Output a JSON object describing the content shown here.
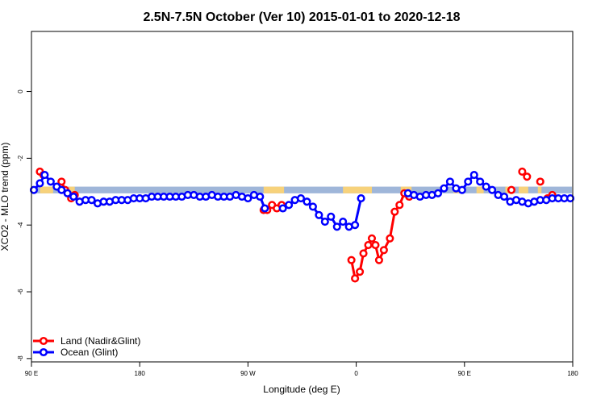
{
  "chart_data": {
    "type": "line",
    "title": "2.5N-7.5N October (Ver 10)   2015-01-01 to 2020-12-18",
    "xlabel": "Longitude (deg E)",
    "ylabel": "XCO2 - MLO trend (ppm)",
    "x_ticks": [
      {
        "value": 90,
        "label": "90 E"
      },
      {
        "value": 180,
        "label": "180"
      },
      {
        "value": 270,
        "label": "90 W"
      },
      {
        "value": 360,
        "label": "0"
      },
      {
        "value": 450,
        "label": "90 E"
      },
      {
        "value": 540,
        "label": "180"
      }
    ],
    "y_ticks": [
      {
        "value": 0,
        "label": "0"
      },
      {
        "value": -2,
        "label": "-2"
      },
      {
        "value": -4,
        "label": "-4"
      },
      {
        "value": -6,
        "label": "-6"
      },
      {
        "value": -8,
        "label": "-8"
      }
    ],
    "xlim": [
      90,
      540
    ],
    "ylim": [
      -8.1,
      1.8
    ],
    "grid": false,
    "legend_position": "bottom-left",
    "band_y": [
      -2.85,
      -3.05
    ],
    "land_mask": [
      [
        97,
        108
      ],
      [
        121,
        126
      ],
      [
        283,
        300
      ],
      [
        349,
        373
      ],
      [
        397,
        406
      ],
      [
        441,
        450
      ],
      [
        460,
        466
      ],
      [
        484,
        488
      ],
      [
        495,
        503
      ],
      [
        511,
        514
      ]
    ],
    "colors": {
      "land": "#ff0000",
      "ocean": "#0000ff",
      "band_ocean": "#9fb6d9",
      "band_land": "#f7d27b"
    },
    "series": [
      {
        "name": "Land (Nadir&Glint)",
        "segments": [
          [
            [
              97,
              -2.4
            ],
            [
              100,
              -2.5
            ]
          ],
          [
            [
              115,
              -2.7
            ],
            [
              118,
              -2.95
            ]
          ],
          [
            [
              123,
              -3.2
            ],
            [
              126,
              -3.1
            ]
          ],
          [
            [
              283,
              -3.55
            ],
            [
              286,
              -3.55
            ],
            [
              290,
              -3.4
            ],
            [
              294,
              -3.5
            ],
            [
              298,
              -3.4
            ]
          ],
          [
            [
              356,
              -5.05
            ],
            [
              359,
              -5.6
            ],
            [
              363,
              -5.4
            ],
            [
              366,
              -4.85
            ],
            [
              370,
              -4.6
            ],
            [
              373,
              -4.4
            ],
            [
              376,
              -4.6
            ],
            [
              379,
              -5.05
            ],
            [
              383,
              -4.75
            ],
            [
              388,
              -4.4
            ],
            [
              392,
              -3.6
            ],
            [
              396,
              -3.4
            ],
            [
              400,
              -3.05
            ],
            [
              404,
              -3.15
            ]
          ],
          [
            [
              489,
              -2.95
            ]
          ],
          [
            [
              498,
              -2.4
            ],
            [
              502,
              -2.55
            ]
          ],
          [
            [
              513,
              -2.7
            ]
          ],
          [
            [
              519,
              -3.2
            ],
            [
              523,
              -3.1
            ]
          ]
        ]
      },
      {
        "name": "Ocean (Glint)",
        "segments": [
          [
            [
              92,
              -2.95
            ],
            [
              97,
              -2.75
            ],
            [
              101,
              -2.5
            ],
            [
              106,
              -2.7
            ],
            [
              111,
              -2.85
            ],
            [
              115,
              -2.95
            ],
            [
              120,
              -3.05
            ],
            [
              125,
              -3.15
            ],
            [
              130,
              -3.3
            ],
            [
              135,
              -3.25
            ],
            [
              140,
              -3.25
            ],
            [
              145,
              -3.35
            ],
            [
              150,
              -3.3
            ],
            [
              155,
              -3.3
            ],
            [
              160,
              -3.25
            ],
            [
              165,
              -3.25
            ],
            [
              170,
              -3.25
            ],
            [
              175,
              -3.2
            ],
            [
              180,
              -3.2
            ],
            [
              185,
              -3.2
            ],
            [
              190,
              -3.15
            ],
            [
              195,
              -3.15
            ],
            [
              200,
              -3.15
            ],
            [
              205,
              -3.15
            ],
            [
              210,
              -3.15
            ],
            [
              215,
              -3.15
            ],
            [
              220,
              -3.1
            ],
            [
              225,
              -3.1
            ],
            [
              230,
              -3.15
            ],
            [
              235,
              -3.15
            ],
            [
              240,
              -3.1
            ],
            [
              245,
              -3.15
            ],
            [
              250,
              -3.15
            ],
            [
              255,
              -3.15
            ],
            [
              260,
              -3.1
            ],
            [
              265,
              -3.15
            ],
            [
              270,
              -3.2
            ],
            [
              275,
              -3.1
            ],
            [
              280,
              -3.15
            ],
            [
              284,
              -3.5
            ]
          ],
          [
            [
              299,
              -3.5
            ],
            [
              304,
              -3.4
            ],
            [
              309,
              -3.25
            ],
            [
              314,
              -3.2
            ],
            [
              319,
              -3.3
            ],
            [
              324,
              -3.45
            ],
            [
              329,
              -3.7
            ],
            [
              334,
              -3.9
            ],
            [
              339,
              -3.75
            ],
            [
              344,
              -4.05
            ],
            [
              349,
              -3.9
            ],
            [
              354,
              -4.05
            ],
            [
              359,
              -4.0
            ],
            [
              364,
              -3.2
            ]
          ],
          [
            [
              403,
              -3.05
            ],
            [
              408,
              -3.1
            ],
            [
              413,
              -3.15
            ],
            [
              418,
              -3.1
            ],
            [
              423,
              -3.1
            ],
            [
              428,
              -3.05
            ],
            [
              433,
              -2.9
            ],
            [
              438,
              -2.7
            ],
            [
              443,
              -2.9
            ],
            [
              448,
              -2.95
            ],
            [
              453,
              -2.7
            ],
            [
              458,
              -2.5
            ],
            [
              463,
              -2.7
            ],
            [
              468,
              -2.85
            ],
            [
              473,
              -2.95
            ],
            [
              478,
              -3.1
            ],
            [
              483,
              -3.15
            ],
            [
              488,
              -3.3
            ],
            [
              493,
              -3.25
            ],
            [
              498,
              -3.3
            ],
            [
              503,
              -3.35
            ],
            [
              508,
              -3.3
            ],
            [
              513,
              -3.25
            ],
            [
              518,
              -3.25
            ],
            [
              523,
              -3.2
            ],
            [
              528,
              -3.2
            ],
            [
              533,
              -3.2
            ],
            [
              538,
              -3.2
            ]
          ]
        ]
      }
    ]
  }
}
